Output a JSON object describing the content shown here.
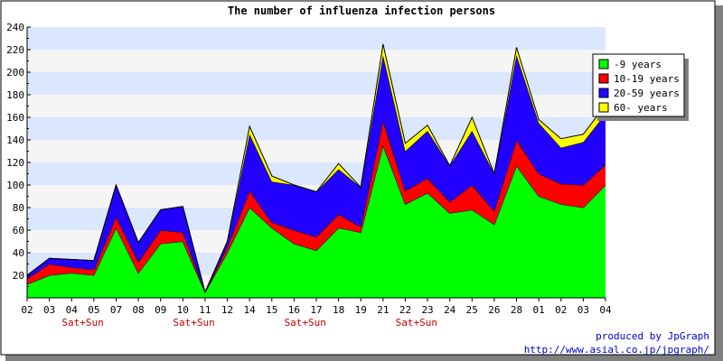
{
  "chart_data": {
    "type": "area",
    "stacked": true,
    "title": "The number of influenza infection persons",
    "xlabel": "",
    "ylabel": "",
    "ylim": [
      0,
      240
    ],
    "y_ticks": [
      20,
      40,
      60,
      80,
      100,
      120,
      140,
      160,
      180,
      200,
      220,
      240
    ],
    "grid": "horizontal bands",
    "legend_position": "top-right",
    "categories": [
      "02",
      "03",
      "04",
      "05",
      "07",
      "08",
      "09",
      "10",
      "11",
      "12",
      "14",
      "15",
      "16",
      "17",
      "18",
      "19",
      "21",
      "22",
      "23",
      "24",
      "25",
      "26",
      "28",
      "01",
      "02",
      "03",
      "04"
    ],
    "weekend_labels": [
      {
        "after_index": 2,
        "text": "Sat+Sun"
      },
      {
        "after_index": 7,
        "text": "Sat+Sun"
      },
      {
        "after_index": 12,
        "text": "Sat+Sun"
      },
      {
        "after_index": 17,
        "text": "Sat+Sun"
      }
    ],
    "series": [
      {
        "name": "-9 years",
        "color": "#00ff00",
        "values": [
          12,
          20,
          22,
          20,
          62,
          22,
          48,
          50,
          5,
          40,
          80,
          62,
          48,
          42,
          62,
          58,
          135,
          83,
          93,
          75,
          78,
          65,
          117,
          90,
          83,
          80,
          100
        ]
      },
      {
        "name": "10-19 years",
        "color": "#ff0000",
        "values": [
          5,
          10,
          5,
          5,
          10,
          10,
          12,
          8,
          0,
          5,
          15,
          5,
          12,
          12,
          12,
          5,
          22,
          12,
          13,
          10,
          22,
          12,
          23,
          20,
          18,
          20,
          18
        ]
      },
      {
        "name": "20-59 years",
        "color": "#2200ff",
        "values": [
          3,
          5,
          7,
          8,
          28,
          17,
          18,
          23,
          0,
          5,
          50,
          36,
          40,
          40,
          40,
          35,
          58,
          35,
          42,
          32,
          48,
          33,
          75,
          45,
          32,
          38,
          45
        ]
      },
      {
        "name": "60- years",
        "color": "#ffff00",
        "values": [
          0,
          0,
          0,
          0,
          0,
          0,
          0,
          0,
          0,
          0,
          7,
          5,
          0,
          0,
          5,
          0,
          10,
          7,
          5,
          0,
          12,
          0,
          7,
          3,
          8,
          7,
          8
        ]
      }
    ]
  },
  "footer": {
    "credit_line1": "produced by JpGraph",
    "credit_line2": "http://www.asial.co.jp/jpgraph/"
  },
  "colors": {
    "band_light": "#f5f5f5",
    "band_blue": "#dbe6ff",
    "weekend_label": "#cc0000",
    "credit": "#0000cc"
  }
}
